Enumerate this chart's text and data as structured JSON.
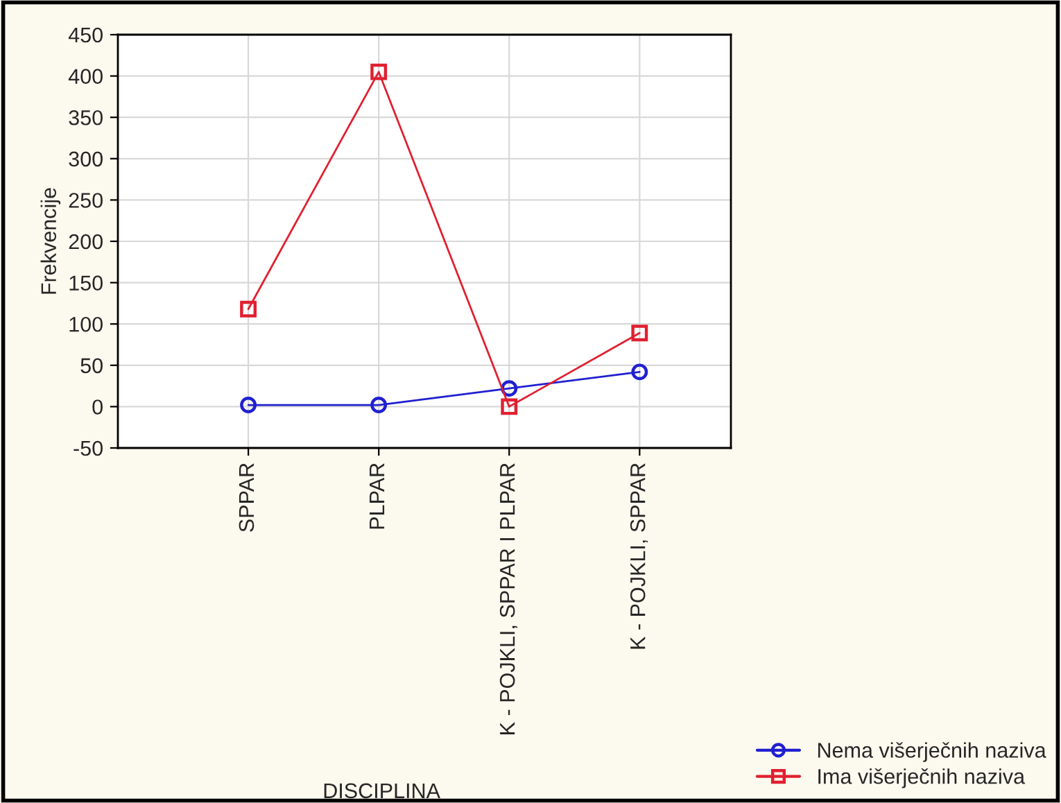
{
  "chart_data": {
    "type": "line",
    "xlabel": "DISCIPLINA",
    "ylabel": "Frekvencije",
    "categories": [
      "SPPAR",
      "PLPAR",
      "K - POJKLI, SPPAR I PLPAR",
      "K - POJKLI, SPPAR"
    ],
    "series": [
      {
        "name": "Nema višerječnih naziva",
        "color": "#2020d0",
        "marker": "circle",
        "values": [
          2,
          2,
          22,
          42
        ]
      },
      {
        "name": "Ima višerječnih naziva",
        "color": "#e02030",
        "marker": "square",
        "values": [
          118,
          405,
          0,
          89
        ]
      }
    ],
    "ylim": [
      -50,
      450
    ],
    "yticks": [
      -50,
      0,
      50,
      100,
      150,
      200,
      250,
      300,
      350,
      400,
      450
    ],
    "grid": true,
    "legend": "bottom right",
    "line_style": "solid"
  }
}
